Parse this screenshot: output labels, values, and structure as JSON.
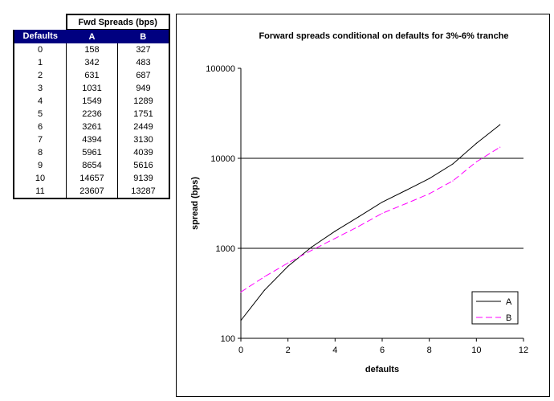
{
  "table": {
    "title": "Fwd Spreads (bps)",
    "headers": [
      "Defaults",
      "A",
      "B"
    ],
    "rows": [
      [
        "0",
        "158",
        "327"
      ],
      [
        "1",
        "342",
        "483"
      ],
      [
        "2",
        "631",
        "687"
      ],
      [
        "3",
        "1031",
        "949"
      ],
      [
        "4",
        "1549",
        "1289"
      ],
      [
        "5",
        "2236",
        "1751"
      ],
      [
        "6",
        "3261",
        "2449"
      ],
      [
        "7",
        "4394",
        "3130"
      ],
      [
        "8",
        "5961",
        "4039"
      ],
      [
        "9",
        "8654",
        "5616"
      ],
      [
        "10",
        "14657",
        "9139"
      ],
      [
        "11",
        "23607",
        "13287"
      ]
    ]
  },
  "chart_data": {
    "type": "line",
    "title": "Forward spreads conditional on defaults for 3%-6% tranche",
    "xlabel": "defaults",
    "ylabel": "spread (bps)",
    "x": [
      0,
      1,
      2,
      3,
      4,
      5,
      6,
      7,
      8,
      9,
      10,
      11
    ],
    "xlim": [
      0,
      12
    ],
    "xticks": [
      "0",
      "2",
      "4",
      "6",
      "8",
      "10",
      "12"
    ],
    "ylim": [
      100,
      100000
    ],
    "yscale": "log",
    "yticks": [
      "100",
      "1000",
      "10000",
      "100000"
    ],
    "grid": "horizontal",
    "legend_position": "bottom-right",
    "series": [
      {
        "name": "A",
        "color": "#000000",
        "dash": "solid",
        "values": [
          158,
          342,
          631,
          1031,
          1549,
          2236,
          3261,
          4394,
          5961,
          8654,
          14657,
          23607
        ]
      },
      {
        "name": "B",
        "color": "#ff00ff",
        "dash": "dashed",
        "values": [
          327,
          483,
          687,
          949,
          1289,
          1751,
          2449,
          3130,
          4039,
          5616,
          9139,
          13287
        ]
      }
    ]
  }
}
